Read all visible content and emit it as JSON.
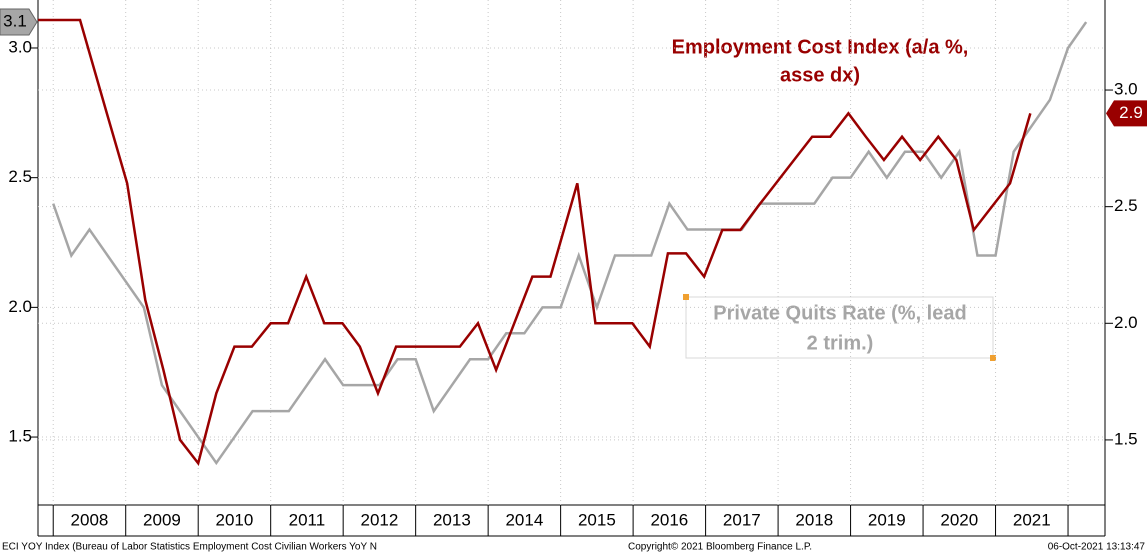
{
  "chart_data": {
    "type": "line",
    "annotations": [
      "Employment Cost Index (a/a %,",
      "asse dx)",
      "Private Quits Rate (%, lead",
      "2 trim.)"
    ],
    "footer": [
      "ECI YOY Index (Bureau of Labor Statistics Employment Cost Civilian Workers YoY N",
      "Copyright© 2021 Bloomberg Finance L.P.",
      "06-Oct-2021 13:13:47"
    ],
    "categories": [
      "2008",
      "2009",
      "2010",
      "2011",
      "2012",
      "2013",
      "2014",
      "2015",
      "2016",
      "2017",
      "2018",
      "2019",
      "2020",
      "2021"
    ],
    "xticks": [
      2008,
      2009,
      2010,
      2011,
      2012,
      2013,
      2014,
      2015,
      2016,
      2017,
      2018,
      2019,
      2020,
      2021,
      2022
    ],
    "xlim": [
      2007.79,
      2022.51
    ],
    "ylim": [
      1.238,
      3.185
    ],
    "yticks": [
      {
        "value": 1.5,
        "label": "1.5"
      },
      {
        "value": 2,
        "label": "2.0"
      },
      2.5,
      {
        "value": 3,
        "label": "3.0"
      }
    ],
    "y2lim": [
      1.221,
      3.386
    ],
    "y2ticks": [
      1.5,
      {
        "value": 2,
        "label": "2.0"
      },
      2.5,
      {
        "value": 3,
        "label": "3.0"
      }
    ],
    "grid": true,
    "series": [
      {
        "name": "Private Quits Rate",
        "color": "#a6a6a6",
        "axis": "y",
        "x": [
          2008,
          2008.25,
          2008.5,
          2008.75,
          2009,
          2009.25,
          2009.5,
          2009.75,
          2010,
          2010.25,
          2010.5,
          2010.75,
          2011,
          2011.25,
          2011.5,
          2011.75,
          2012,
          2012.25,
          2012.5,
          2012.75,
          2013,
          2013.25,
          2013.5,
          2013.75,
          2014,
          2014.25,
          2014.5,
          2014.75,
          2015,
          2015.25,
          2015.5,
          2015.75,
          2016,
          2016.25,
          2016.5,
          2016.75,
          2017,
          2017.25,
          2017.5,
          2017.75,
          2018,
          2018.25,
          2018.5,
          2018.75,
          2019,
          2019.25,
          2019.5,
          2019.75,
          2020,
          2020.25,
          2020.5,
          2020.75,
          2021,
          2021.25,
          2021.5,
          2021.75,
          2022,
          2022.25
        ],
        "values": [
          2.4,
          2.2,
          2.3,
          2.2,
          2.1,
          2.0,
          1.7,
          1.6,
          1.5,
          1.4,
          1.5,
          1.6,
          1.6,
          1.6,
          1.7,
          1.8,
          1.7,
          1.7,
          1.7,
          1.8,
          1.8,
          1.6,
          1.7,
          1.8,
          1.8,
          1.9,
          1.9,
          2.0,
          2.0,
          2.2,
          2.0,
          2.2,
          2.2,
          2.2,
          2.4,
          2.3,
          2.3,
          2.3,
          2.3,
          2.4,
          2.4,
          2.4,
          2.4,
          2.5,
          2.5,
          2.6,
          2.5,
          2.6,
          2.6,
          2.5,
          2.6,
          2.2,
          2.2,
          2.6,
          2.7,
          2.8,
          3.0,
          3.1
        ]
      },
      {
        "name": "Employment Cost Index",
        "color": "#990000",
        "axis": "y2",
        "x": [
          2007.79,
          2008.37,
          2008.74,
          2009.02,
          2009.27,
          2009.52,
          2009.75,
          2010.0,
          2010.25,
          2010.5,
          2010.74,
          2011.0,
          2011.24,
          2011.49,
          2011.74,
          2011.99,
          2012.23,
          2012.48,
          2012.73,
          2012.98,
          2013.23,
          2013.61,
          2013.86,
          2014.11,
          2014.36,
          2014.61,
          2014.86,
          2015.23,
          2015.48,
          2015.72,
          2015.99,
          2016.23,
          2016.48,
          2016.73,
          2016.98,
          2017.23,
          2017.48,
          2017.72,
          2017.97,
          2018.22,
          2018.47,
          2018.72,
          2018.97,
          2019.21,
          2019.46,
          2019.71,
          2019.96,
          2020.21,
          2020.46,
          2020.7,
          2020.95,
          2021.2,
          2021.48
        ],
        "values": [
          3.3,
          3.3,
          2.9,
          2.6,
          2.1,
          1.8,
          1.5,
          1.4,
          1.7,
          1.9,
          1.9,
          2.0,
          2.0,
          2.2,
          2.0,
          2.0,
          1.9,
          1.7,
          1.9,
          1.9,
          1.9,
          1.9,
          2.0,
          1.8,
          2.0,
          2.2,
          2.2,
          2.6,
          2.0,
          2.0,
          2.0,
          1.9,
          2.3,
          2.3,
          2.2,
          2.4,
          2.4,
          2.5,
          2.6,
          2.7,
          2.8,
          2.8,
          2.9,
          2.8,
          2.7,
          2.8,
          2.7,
          2.8,
          2.7,
          2.4,
          2.5,
          2.6,
          2.9
        ]
      }
    ]
  }
}
